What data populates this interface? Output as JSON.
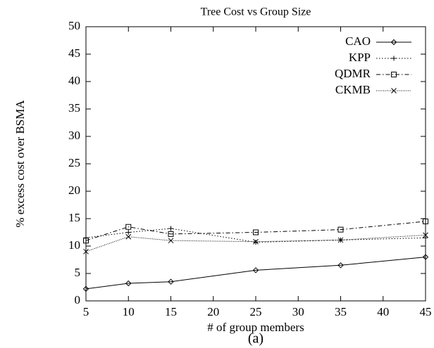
{
  "chart_data": {
    "type": "line",
    "title": "Tree Cost vs Group Size",
    "x_label": "# of group members",
    "y_label": "% excess cost over BSMA",
    "caption": "(a)",
    "x": [
      5,
      10,
      15,
      25,
      35,
      45
    ],
    "series": [
      {
        "name": "CAO",
        "color": "#000000",
        "dash": "none",
        "marker": "diamond",
        "values": [
          2.2,
          3.2,
          3.5,
          5.6,
          6.5,
          8.0
        ]
      },
      {
        "name": "KPP",
        "color": "#000000",
        "dash": "1.5,2.5",
        "marker": "plus",
        "values": [
          11.5,
          12.5,
          13.2,
          10.7,
          11.1,
          11.5
        ]
      },
      {
        "name": "QDMR",
        "color": "#000000",
        "dash": "6,3,1.5,3",
        "marker": "square",
        "values": [
          11.0,
          13.5,
          12.2,
          12.5,
          13.0,
          14.5
        ]
      },
      {
        "name": "CKMB",
        "color": "#000000",
        "dash": "1,1.5",
        "marker": "cross",
        "values": [
          9.0,
          11.7,
          11.0,
          10.8,
          11.1,
          12.0
        ]
      }
    ],
    "xlim": [
      5,
      45
    ],
    "xticks": [
      5,
      10,
      15,
      20,
      25,
      30,
      35,
      40,
      45
    ],
    "ylim": [
      0,
      50
    ],
    "yticks": [
      0,
      5,
      10,
      15,
      20,
      25,
      30,
      35,
      40,
      45,
      50
    ],
    "legend": "top-right"
  }
}
